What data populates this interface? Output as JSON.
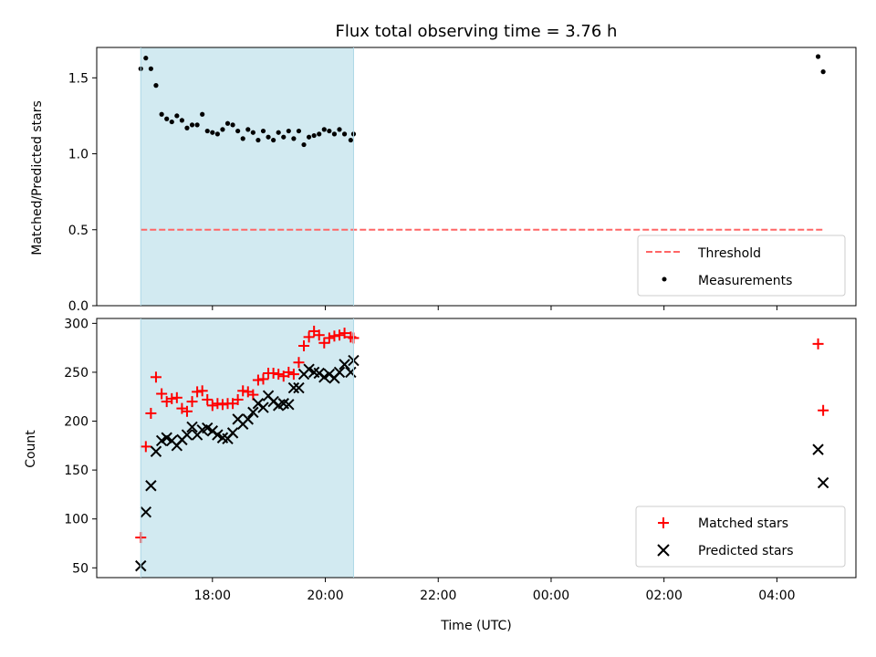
{
  "chart_data": {
    "title": "Flux total observing time = 3.76 h",
    "xlabel": "Time (UTC)",
    "x_ticks": [
      "18:00",
      "20:00",
      "22:00",
      "00:00",
      "02:00",
      "04:00"
    ],
    "x_range_hours": [
      15.95,
      29.4
    ],
    "highlight_span_hours": [
      16.73,
      20.5
    ],
    "highlight_color": "#add8e6",
    "panels": [
      {
        "type": "scatter",
        "ylabel": "Matched/Predicted stars",
        "ylim": [
          0,
          1.7
        ],
        "yticks": [
          "0.0",
          "0.5",
          "1.0",
          "1.5"
        ],
        "threshold": 0.5,
        "threshold_color": "#ff6666",
        "legend": [
          "Threshold",
          "Measurements"
        ],
        "legend_placement": "bottom-right",
        "series": [
          {
            "name": "Measurements",
            "color": "#000000",
            "marker": "dot",
            "x": [
              16.73,
              16.82,
              16.91,
              17.0,
              17.1,
              17.19,
              17.28,
              17.37,
              17.46,
              17.55,
              17.64,
              17.73,
              17.82,
              17.91,
              18.0,
              18.09,
              18.18,
              18.27,
              18.36,
              18.45,
              18.54,
              18.63,
              18.72,
              18.81,
              18.9,
              18.99,
              19.08,
              19.17,
              19.26,
              19.35,
              19.44,
              19.53,
              19.62,
              19.71,
              19.8,
              19.89,
              19.98,
              20.07,
              20.16,
              20.25,
              20.34,
              20.45,
              20.5,
              28.73,
              28.82
            ],
            "y": [
              1.56,
              1.63,
              1.56,
              1.45,
              1.26,
              1.23,
              1.21,
              1.25,
              1.22,
              1.17,
              1.19,
              1.19,
              1.26,
              1.15,
              1.14,
              1.13,
              1.16,
              1.2,
              1.19,
              1.15,
              1.1,
              1.16,
              1.14,
              1.09,
              1.15,
              1.11,
              1.09,
              1.14,
              1.11,
              1.15,
              1.1,
              1.15,
              1.06,
              1.11,
              1.12,
              1.13,
              1.16,
              1.15,
              1.13,
              1.16,
              1.13,
              1.09,
              1.13,
              1.64,
              1.54
            ]
          }
        ]
      },
      {
        "type": "scatter",
        "ylabel": "Count",
        "ylim": [
          40,
          305
        ],
        "yticks": [
          "50",
          "100",
          "150",
          "200",
          "250",
          "300"
        ],
        "legend": [
          "Matched stars",
          "Predicted stars"
        ],
        "legend_placement": "bottom-right",
        "series": [
          {
            "name": "Matched stars",
            "color": "#ff0000",
            "marker": "plus",
            "x": [
              16.73,
              16.82,
              16.91,
              17.0,
              17.1,
              17.19,
              17.28,
              17.37,
              17.46,
              17.55,
              17.64,
              17.73,
              17.82,
              17.91,
              18.0,
              18.09,
              18.18,
              18.27,
              18.36,
              18.45,
              18.54,
              18.63,
              18.72,
              18.81,
              18.9,
              18.99,
              19.08,
              19.17,
              19.26,
              19.35,
              19.44,
              19.53,
              19.62,
              19.71,
              19.8,
              19.89,
              19.98,
              20.07,
              20.16,
              20.25,
              20.34,
              20.45,
              20.5,
              28.73,
              28.82
            ],
            "y": [
              81,
              174,
              208,
              245,
              228,
              220,
              223,
              224,
              213,
              210,
              220,
              230,
              231,
              222,
              216,
              218,
              217,
              218,
              218,
              222,
              231,
              230,
              227,
              242,
              243,
              249,
              249,
              248,
              246,
              250,
              248,
              260,
              277,
              286,
              292,
              288,
              280,
              285,
              287,
              288,
              290,
              286,
              285,
              279,
              211
            ]
          },
          {
            "name": "Predicted stars",
            "color": "#000000",
            "marker": "x",
            "x": [
              16.73,
              16.82,
              16.91,
              17.0,
              17.1,
              17.19,
              17.28,
              17.37,
              17.46,
              17.55,
              17.64,
              17.73,
              17.82,
              17.91,
              18.0,
              18.09,
              18.18,
              18.27,
              18.36,
              18.45,
              18.54,
              18.63,
              18.72,
              18.81,
              18.9,
              18.99,
              19.08,
              19.17,
              19.26,
              19.35,
              19.44,
              19.53,
              19.62,
              19.71,
              19.8,
              19.89,
              19.98,
              20.07,
              20.16,
              20.25,
              20.34,
              20.45,
              20.5,
              28.73,
              28.82
            ],
            "y": [
              52,
              107,
              134,
              169,
              180,
              183,
              180,
              175,
              181,
              186,
              194,
              186,
              191,
              193,
              190,
              186,
              183,
              182,
              188,
              202,
              197,
              202,
              209,
              218,
              214,
              226,
              220,
              216,
              218,
              217,
              234,
              234,
              248,
              253,
              250,
              249,
              245,
              248,
              244,
              250,
              258,
              250,
              262,
              171,
              137
            ]
          }
        ]
      }
    ]
  }
}
